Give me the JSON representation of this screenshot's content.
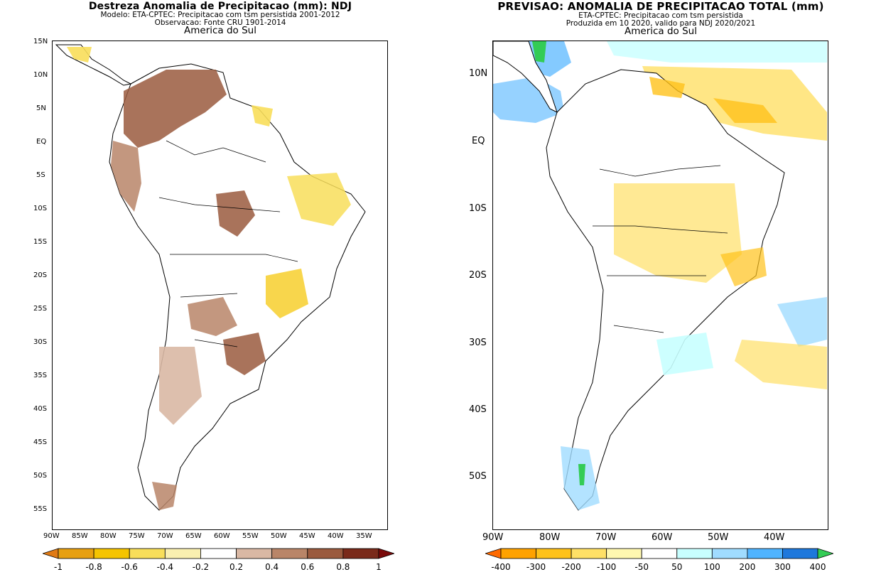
{
  "left_panel": {
    "title": "Destreza Anomalia de Precipitacao (mm): NDJ",
    "subtitle1": "Modelo: ETA-CPTEC: Precipitacao com tsm persistida 2001-2012",
    "subtitle2": "Observacao: Fonte CRU 1901-2014",
    "region": "America do Sul",
    "y_labels": [
      "15N",
      "10N",
      "5N",
      "EQ",
      "5S",
      "10S",
      "15S",
      "20S",
      "25S",
      "30S",
      "35S",
      "40S",
      "45S",
      "50S",
      "55S"
    ],
    "x_labels": [
      "90W",
      "85W",
      "80W",
      "75W",
      "70W",
      "65W",
      "60W",
      "55W",
      "50W",
      "45W",
      "40W",
      "35W"
    ],
    "legend": {
      "labels": [
        "-1",
        "-0.8",
        "-0.6",
        "-0.4",
        "-0.2",
        "0.2",
        "0.4",
        "0.6",
        "0.8",
        "1"
      ],
      "colors": [
        "#e07a14",
        "#e8a010",
        "#f5c400",
        "#f8de5a",
        "#faf0b0",
        "#ffffff",
        "#d9b8a4",
        "#b98568",
        "#9a5a3e",
        "#7a2a1a",
        "#7a0a0a"
      ]
    }
  },
  "right_panel": {
    "title": "PREVISAO: ANOMALIA DE PRECIPITACAO TOTAL (mm)",
    "subtitle1": "ETA-CPTEC: Precipitacao com tsm persistida",
    "subtitle2": "Produzida em 10 2020, valido para NDJ 2020/2021",
    "region": "America do Sul",
    "y_labels": [
      "10N",
      "EQ",
      "10S",
      "20S",
      "30S",
      "40S",
      "50S"
    ],
    "x_labels": [
      "90W",
      "80W",
      "70W",
      "60W",
      "50W",
      "40W"
    ],
    "legend": {
      "labels": [
        "-400",
        "-300",
        "-200",
        "-100",
        "-50",
        "50",
        "100",
        "200",
        "300",
        "400"
      ],
      "colors": [
        "#ff6a00",
        "#ffa200",
        "#ffc21a",
        "#ffe066",
        "#fff8b0",
        "#ffffff",
        "#c8ffff",
        "#a0dcff",
        "#50b4ff",
        "#1e78dc",
        "#33cc55"
      ]
    }
  }
}
